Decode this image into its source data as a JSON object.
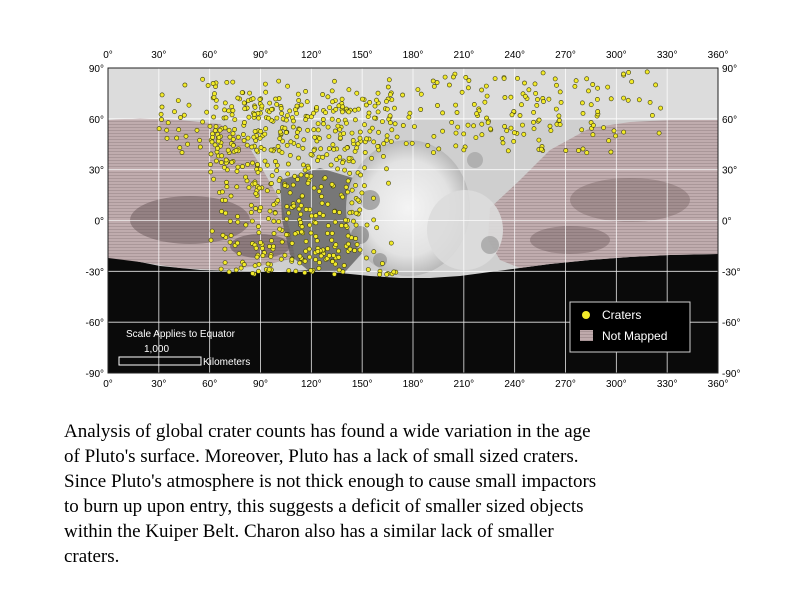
{
  "map": {
    "lon_ticks_top": [
      "0°",
      "30°",
      "60°",
      "90°",
      "120°",
      "150°",
      "180°",
      "210°",
      "240°",
      "270°",
      "300°",
      "330°",
      "360°"
    ],
    "lon_ticks_bottom": [
      "0°",
      "30°",
      "60°",
      "90°",
      "120°",
      "150°",
      "180°",
      "210°",
      "240°",
      "270°",
      "300°",
      "330°",
      "360°"
    ],
    "lat_ticks_left": [
      "90°",
      "60°",
      "30°",
      "0°",
      "-30°",
      "-60°",
      "-90°"
    ],
    "lat_ticks_right": [
      "90°",
      "60°",
      "30°",
      "0°",
      "-30°",
      "-60°",
      "-90°"
    ],
    "colors": {
      "crater": "#f2ea2a",
      "crater_outline": "#3a3a10",
      "not_mapped": "#b8a4a6",
      "unlit": "#0a0a0a",
      "terrain": "#c8c8c8"
    }
  },
  "legend": {
    "craters": "Craters",
    "not_mapped": "Not Mapped"
  },
  "scale_bar": {
    "title": "Scale Applies to Equator",
    "value": "1,000",
    "unit": "Kilometers"
  },
  "caption": "Analysis of global crater counts has found a wide variation in the age\nof Pluto's surface.  Moreover, Pluto has a lack of small sized craters.\nSince Pluto's atmosphere is not thick enough to cause small impactors\nto burn up upon entry, this suggests a deficit of smaller sized objects\nwithin the Kuiper Belt.  Charon also has a similar lack of smaller\ncraters."
}
